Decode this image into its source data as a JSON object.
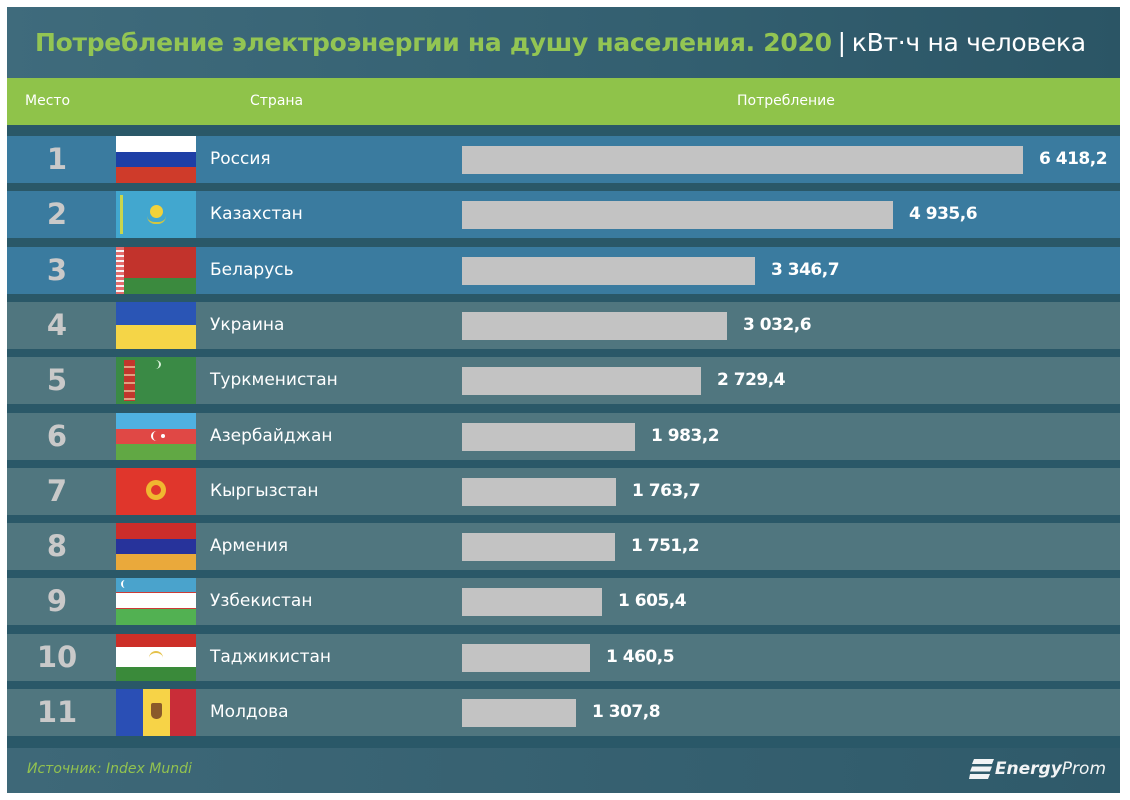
{
  "title": {
    "main": "Потребление электроэнергии на душу населения. 2020",
    "separator": "|",
    "unit": "кВт·ч на человека"
  },
  "header": {
    "rank_label": "Место",
    "country_label": "Страна",
    "value_label": "Потребление"
  },
  "rows": [
    {
      "rank": "1",
      "country": "Россия",
      "value_text": "6 418,2",
      "flag": "russia-flag"
    },
    {
      "rank": "2",
      "country": "Казахстан",
      "value_text": "4 935,6",
      "flag": "kazakhstan-flag"
    },
    {
      "rank": "3",
      "country": "Беларусь",
      "value_text": "3 346,7",
      "flag": "belarus-flag"
    },
    {
      "rank": "4",
      "country": "Украина",
      "value_text": "3 032,6",
      "flag": "ukraine-flag"
    },
    {
      "rank": "5",
      "country": "Туркменистан",
      "value_text": "2 729,4",
      "flag": "turkmenistan-flag"
    },
    {
      "rank": "6",
      "country": "Азербайджан",
      "value_text": "1 983,2",
      "flag": "azerbaijan-flag"
    },
    {
      "rank": "7",
      "country": "Кыргызстан",
      "value_text": "1 763,7",
      "flag": "kyrgyzstan-flag"
    },
    {
      "rank": "8",
      "country": "Армения",
      "value_text": "1 751,2",
      "flag": "armenia-flag"
    },
    {
      "rank": "9",
      "country": "Узбекистан",
      "value_text": "1 605,4",
      "flag": "uzbekistan-flag"
    },
    {
      "rank": "10",
      "country": "Таджикистан",
      "value_text": "1 460,5",
      "flag": "tajikistan-flag"
    },
    {
      "rank": "11",
      "country": "Молдова",
      "value_text": "1 307,8",
      "flag": "moldova-flag"
    }
  ],
  "footer": {
    "source": "Источник: Index Mundi",
    "logo_bold": "Energy",
    "logo_rest": "Prom"
  },
  "colors": {
    "title_accent": "#93c553",
    "header_green": "#8fc34a",
    "row_top3": "#3a7b9f",
    "row_rest": "#50767f",
    "gap": "#2a5868",
    "bar": "#c3c3c3"
  },
  "chart_data": {
    "type": "bar",
    "orientation": "horizontal",
    "title": "Потребление электроэнергии на душу населения. 2020",
    "subtitle": "кВт·ч на человека",
    "xlabel": "Потребление",
    "ylabel": "Страна",
    "categories": [
      "Россия",
      "Казахстан",
      "Беларусь",
      "Украина",
      "Туркменистан",
      "Азербайджан",
      "Кыргызстан",
      "Армения",
      "Узбекистан",
      "Таджикистан",
      "Молдова"
    ],
    "values": [
      6418.2,
      4935.6,
      3346.7,
      3032.6,
      2729.4,
      1983.2,
      1763.7,
      1751.2,
      1605.4,
      1460.5,
      1307.8
    ],
    "ranks": [
      1,
      2,
      3,
      4,
      5,
      6,
      7,
      8,
      9,
      10,
      11
    ],
    "source": "Index Mundi",
    "grid": false,
    "legend": false
  }
}
